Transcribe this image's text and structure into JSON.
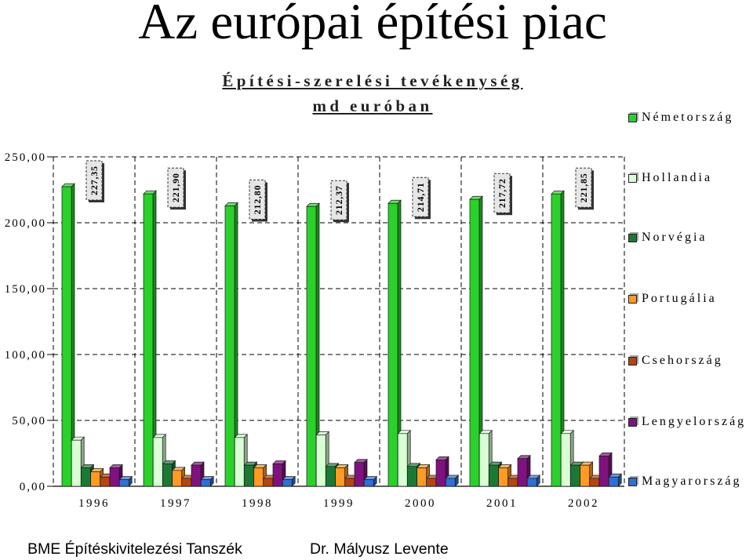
{
  "slide": {
    "title": "Az európai építési piac"
  },
  "footer": {
    "left": "BME Építéskivitelezési Tanszék",
    "right": "Dr. Mályusz Levente"
  },
  "chart_data": {
    "type": "bar",
    "three_d": true,
    "title_lines": [
      "Építési-szerelési tevékenység",
      "md euróban"
    ],
    "categories": [
      "1996",
      "1997",
      "1998",
      "1999",
      "2000",
      "2001",
      "2002"
    ],
    "ylim": [
      0,
      250
    ],
    "y_ticks": [
      {
        "value": 0,
        "label": "0,00"
      },
      {
        "value": 50,
        "label": "50,00"
      },
      {
        "value": 100,
        "label": "100,00"
      },
      {
        "value": 150,
        "label": "150,00"
      },
      {
        "value": 200,
        "label": "200,00"
      },
      {
        "value": 250,
        "label": "250,00"
      }
    ],
    "grid": true,
    "legend_position": "right",
    "series": [
      {
        "name": "Németország",
        "color": "#2bd12b",
        "values": [
          227.35,
          221.9,
          212.8,
          212.37,
          214.71,
          217.72,
          221.85
        ],
        "data_labels": [
          "227,35",
          "221,90",
          "212,80",
          "212,37",
          "214,71",
          "217,72",
          "221,85"
        ]
      },
      {
        "name": "Hollandia",
        "color": "#d9ffd4",
        "values": [
          35,
          37,
          37,
          39,
          40,
          40,
          40
        ]
      },
      {
        "name": "Norvégia",
        "color": "#1a7a34",
        "values": [
          14,
          17,
          16,
          15,
          15,
          16,
          16
        ]
      },
      {
        "name": "Portugália",
        "color": "#ff9a22",
        "values": [
          11,
          12,
          14,
          14,
          14,
          14,
          16
        ]
      },
      {
        "name": "Csehország",
        "color": "#b5460f",
        "values": [
          7,
          6,
          6,
          6,
          6,
          6,
          6
        ]
      },
      {
        "name": "Lengyelország",
        "color": "#80127f",
        "values": [
          14,
          16,
          17,
          18,
          20,
          21,
          23
        ]
      },
      {
        "name": "Magyarország",
        "color": "#2f6fd6",
        "values": [
          5,
          5,
          5,
          5,
          6,
          6,
          7
        ]
      }
    ]
  }
}
